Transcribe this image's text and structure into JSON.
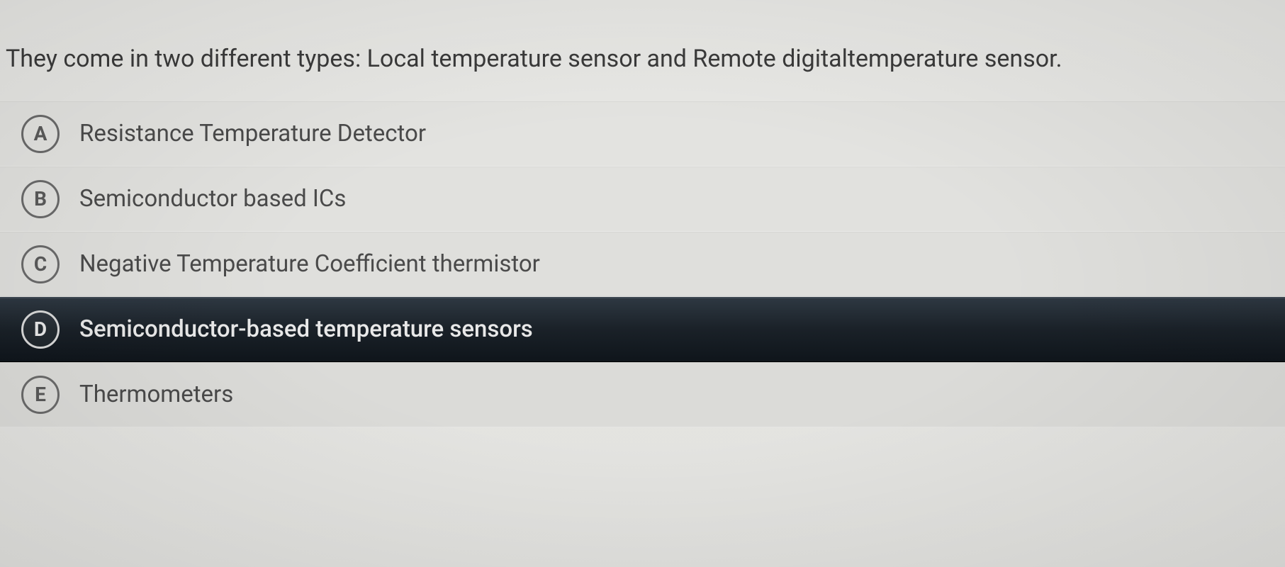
{
  "question": {
    "text": "They come in two different types: Local temperature sensor and Remote digitaltemperature sensor."
  },
  "options": [
    {
      "letter": "A",
      "label": "Resistance Temperature Detector",
      "selected": false
    },
    {
      "letter": "B",
      "label": "Semiconductor based ICs",
      "selected": false
    },
    {
      "letter": "C",
      "label": "Negative Temperature Coefficient thermistor",
      "selected": false
    },
    {
      "letter": "D",
      "label": "Semiconductor-based temperature sensors",
      "selected": true
    },
    {
      "letter": "E",
      "label": "Thermometers",
      "selected": false
    }
  ],
  "colors": {
    "background": "#e8e8e5",
    "text_primary": "#3a3a3a",
    "text_option": "#4a4a4a",
    "circle_border": "#6a6a6a",
    "selected_bg_start": "#2e3842",
    "selected_bg_end": "#0f151b",
    "selected_text": "#e8e8e8"
  },
  "typography": {
    "question_fontsize": 34,
    "option_fontsize": 33,
    "letter_fontsize": 28,
    "font_family": "Open Sans"
  },
  "layout": {
    "circle_diameter": 54,
    "circle_border_width": 3,
    "option_padding_v": 18,
    "option_padding_h": 30,
    "option_gap": 28
  }
}
